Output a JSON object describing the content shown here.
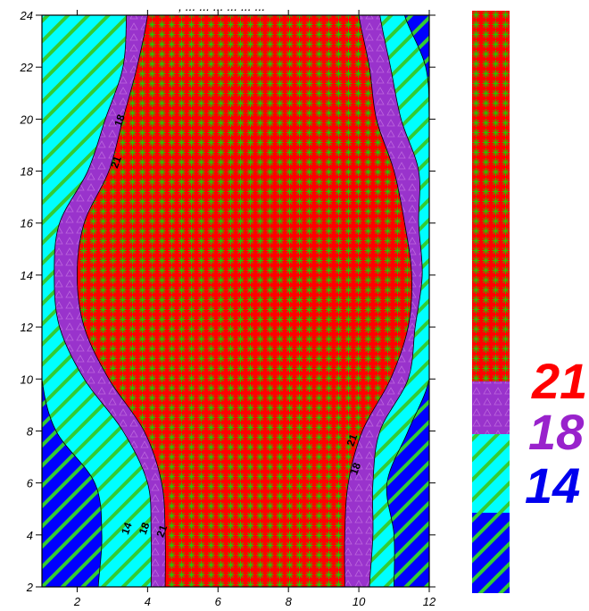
{
  "title_fragment": ", ... ... ... ... ... ...",
  "chart_data": {
    "type": "contour",
    "x_range": [
      1,
      12
    ],
    "y_range": [
      2,
      24
    ],
    "x_ticks": [
      2,
      4,
      6,
      8,
      10,
      12
    ],
    "y_ticks": [
      2,
      4,
      6,
      8,
      10,
      12,
      14,
      16,
      18,
      20,
      22,
      24
    ],
    "levels": [
      14,
      18,
      21
    ],
    "level_fills": [
      {
        "level": 21,
        "color": "#ff0000",
        "pattern": "green-leaves"
      },
      {
        "level": 18,
        "color": "#9933cc",
        "pattern": "triangles"
      },
      {
        "level": 14,
        "color": "#00ffff",
        "pattern": "green-diagonal-stripes"
      },
      {
        "level": "below 14",
        "color": "#0000ff",
        "pattern": "green-diagonal-stripes"
      }
    ],
    "contour_labels": [
      {
        "text": "18",
        "x": 3.3,
        "y": 19.9
      },
      {
        "text": "21",
        "x": 3.2,
        "y": 18.3
      },
      {
        "text": "21",
        "x": 9.9,
        "y": 7.6
      },
      {
        "text": "18",
        "x": 10.0,
        "y": 6.5
      },
      {
        "text": "14",
        "x": 3.5,
        "y": 4.2
      },
      {
        "text": "18",
        "x": 4.0,
        "y": 4.2
      },
      {
        "text": "21",
        "x": 4.5,
        "y": 4.1
      }
    ],
    "left_boundaries": {
      "y": [
        2,
        4,
        6,
        8,
        10,
        12,
        14,
        16,
        18,
        20,
        22,
        24
      ],
      "b14": [
        2.6,
        2.7,
        2.5,
        1.4,
        1.0,
        1.0,
        1.0,
        1.0,
        1.0,
        1.0,
        1.0,
        1.0
      ],
      "b18_lo": [
        3.3,
        3.4,
        3.3,
        2.4,
        1.0,
        1.0,
        1.0,
        1.0,
        1.0,
        1.0,
        1.0,
        1.0
      ],
      "b18_hi": [
        4.1,
        4.1,
        4.0,
        3.3,
        2.2,
        1.5,
        1.35,
        1.5,
        2.3,
        2.8,
        3.3,
        3.4
      ],
      "b21": [
        4.5,
        4.5,
        4.4,
        3.9,
        2.9,
        2.2,
        2.0,
        2.2,
        2.9,
        3.3,
        3.7,
        4.0
      ]
    },
    "right_boundaries": {
      "y": [
        2,
        4,
        6,
        8,
        10,
        12,
        14,
        16,
        18,
        20,
        22,
        24
      ],
      "b21": [
        9.6,
        9.6,
        9.7,
        10.1,
        10.9,
        11.4,
        11.5,
        11.3,
        11.0,
        10.5,
        10.3,
        10.0
      ],
      "b18": [
        10.3,
        10.4,
        10.4,
        10.6,
        11.4,
        11.6,
        11.8,
        11.7,
        11.7,
        11.2,
        10.9,
        10.6
      ],
      "b14": [
        11.0,
        11.0,
        10.8,
        11.4,
        12.0,
        12.0,
        12.0,
        12.0,
        12.0,
        12.0,
        11.9,
        11.3
      ],
      "b_blue_upper": [
        12,
        12,
        12,
        12,
        12,
        12,
        12,
        12,
        12,
        12,
        11.9,
        11.3
      ]
    },
    "legend": [
      {
        "label": "21",
        "color": "#ff0000"
      },
      {
        "label": "18",
        "color": "#9922cc"
      },
      {
        "label": "14",
        "color": "#0000ee"
      }
    ]
  }
}
